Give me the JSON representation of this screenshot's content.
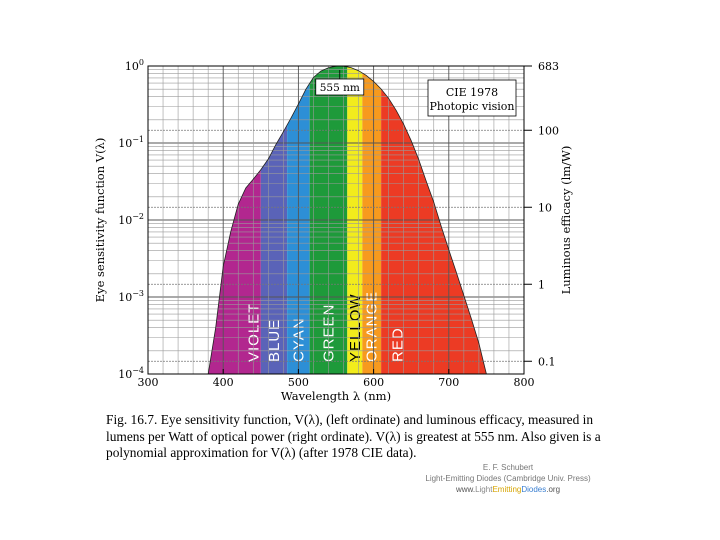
{
  "chart_data": {
    "type": "area",
    "title": "",
    "xlabel": "Wavelength λ  (nm)",
    "ylabel_left": "Eye sensitivity  function   V(λ)",
    "ylabel_right": "Luminous  efficacy   (lm/W)",
    "x_ticks": [
      300,
      400,
      500,
      600,
      700,
      800
    ],
    "xlim": [
      300,
      800
    ],
    "y_scale": "log",
    "ylim": [
      0.0001,
      1
    ],
    "y_ticks_left": [
      {
        "value": 1,
        "base": "10",
        "exp": "0"
      },
      {
        "value": 0.1,
        "base": "10",
        "exp": "−1"
      },
      {
        "value": 0.01,
        "base": "10",
        "exp": "−2"
      },
      {
        "value": 0.001,
        "base": "10",
        "exp": "−3"
      },
      {
        "value": 0.0001,
        "base": "10",
        "exp": "−4"
      }
    ],
    "y_ticks_right": [
      {
        "value": 1,
        "label": "683"
      },
      {
        "value": 0.1464,
        "label": "100"
      },
      {
        "value": 0.01464,
        "label": "10"
      },
      {
        "value": 0.001464,
        "label": "1"
      },
      {
        "value": 0.0001464,
        "label": "0.1"
      }
    ],
    "grid": true,
    "x": [
      380,
      390,
      400,
      410,
      420,
      430,
      440,
      450,
      460,
      470,
      480,
      490,
      500,
      510,
      520,
      530,
      540,
      550,
      555,
      560,
      570,
      580,
      590,
      600,
      610,
      620,
      630,
      640,
      650,
      660,
      670,
      680,
      690,
      700,
      710,
      720,
      730,
      740,
      750
    ],
    "y": [
      0.0001,
      0.0004,
      0.0025,
      0.007,
      0.016,
      0.026,
      0.034,
      0.045,
      0.062,
      0.095,
      0.14,
      0.21,
      0.32,
      0.5,
      0.71,
      0.86,
      0.95,
      0.995,
      1.0,
      0.995,
      0.952,
      0.87,
      0.757,
      0.631,
      0.503,
      0.381,
      0.265,
      0.175,
      0.107,
      0.061,
      0.032,
      0.017,
      0.0082,
      0.0041,
      0.0021,
      0.00105,
      0.00052,
      0.00025,
      0.0001
    ],
    "color_bands": [
      {
        "name": "VIOLET",
        "from": 380,
        "to": 450,
        "color": "#b2278f"
      },
      {
        "name": "BLUE",
        "from": 450,
        "to": 485,
        "color": "#5a63b8"
      },
      {
        "name": "CYAN",
        "from": 485,
        "to": 515,
        "color": "#2d8fd6"
      },
      {
        "name": "GREEN",
        "from": 515,
        "to": 565,
        "color": "#1e9a3a"
      },
      {
        "name": "YELLOW",
        "from": 565,
        "to": 585,
        "color": "#f2ec1c"
      },
      {
        "name": "ORANGE",
        "from": 585,
        "to": 610,
        "color": "#f79a1e"
      },
      {
        "name": "RED",
        "from": 610,
        "to": 750,
        "color": "#ec3b24"
      }
    ],
    "annotations": [
      {
        "text": "555 nm",
        "x": 555
      },
      {
        "lines": [
          "CIE 1978",
          "Photopic vision"
        ],
        "placement": "top-right"
      }
    ]
  },
  "caption": {
    "lead": "Fig. 16.7.",
    "text": " Eye sensitivity function, V(λ), (left ordinate) and luminous efficacy, measured in lumens per Watt of optical power (right ordinate). V(λ) is greatest at 555 nm. Also given is a polynomial approximation for V(λ) (after 1978 CIE data)."
  },
  "credits": {
    "author": "E. F. Schubert",
    "book": "Light-Emitting Diodes (Cambridge Univ. Press)",
    "www": "www.",
    "light": "Light",
    "emitting": "Emitting",
    "diodes": "Diodes",
    "org": ".org"
  }
}
